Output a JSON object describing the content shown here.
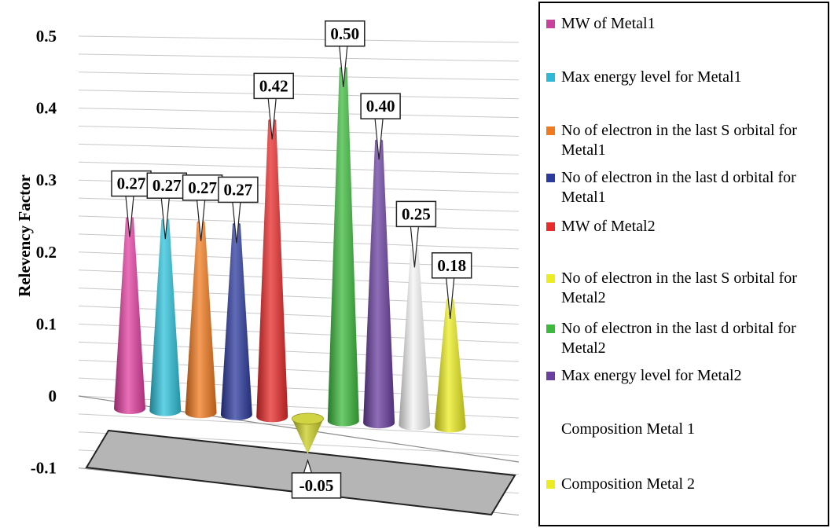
{
  "chart_data": {
    "type": "bar",
    "style": "3d-cone",
    "ylabel": "Relevency Factor",
    "ylim": [
      -0.1,
      0.5
    ],
    "yticks": [
      "0.5",
      "0.4",
      "0.3",
      "0.2",
      "0.1",
      "0",
      "-0.1"
    ],
    "grid": true,
    "legend_position": "right",
    "series": [
      {
        "name": "MW of Metal1",
        "value": 0.27,
        "label": "0.27",
        "color": "#e23fa0"
      },
      {
        "name": "Max energy level for Metal1",
        "value": 0.27,
        "label": "0.27",
        "color": "#2fc3dc"
      },
      {
        "name": "No of electron in the last S orbital for Metal1",
        "value": 0.27,
        "label": "0.27",
        "color": "#f07a1f"
      },
      {
        "name": "No of electron in the last d orbital for Metal1",
        "value": 0.27,
        "label": "0.27",
        "color": "#2c3a9e"
      },
      {
        "name": "MW of Metal2",
        "value": 0.42,
        "label": "0.42",
        "color": "#e82a2a"
      },
      {
        "name": "No of electron in the last S orbital for Metal2",
        "value": -0.05,
        "label": "-0.05",
        "color": "#c8cc22"
      },
      {
        "name": "No of electron in the last d orbital for Metal2",
        "value": 0.5,
        "label": "0.50",
        "color": "#3dba3d"
      },
      {
        "name": "Max energy level for Metal2",
        "value": 0.4,
        "label": "0.40",
        "color": "#6a3fa0"
      },
      {
        "name": "Composition Metal 1",
        "value": 0.25,
        "label": "0.25",
        "color": "#f4f4f4"
      },
      {
        "name": "Composition Metal 2",
        "value": 0.18,
        "label": "0.18",
        "color": "#ecec22"
      }
    ]
  },
  "legend": {
    "items": [
      {
        "label": "MW of Metal1",
        "color": "#c9409e",
        "show_swatch": true
      },
      {
        "label": "Max energy level for Metal1",
        "color": "#2fb8d8",
        "show_swatch": true
      },
      {
        "label": "No of electron in the last S orbital for Metal1",
        "color": "#f07a1f",
        "show_swatch": true
      },
      {
        "label": "No of electron in the last d orbital for Metal1",
        "color": "#2c3a9e",
        "show_swatch": true
      },
      {
        "label": "MW of Metal2",
        "color": "#e82a2a",
        "show_swatch": true
      },
      {
        "label": "No of electron in the last S orbital for Metal2",
        "color": "#ecec22",
        "show_swatch": true
      },
      {
        "label": "No of electron in the last d orbital for Metal2",
        "color": "#3dba3d",
        "show_swatch": true
      },
      {
        "label": "Max energy level for Metal2",
        "color": "#6a3fa0",
        "show_swatch": true
      },
      {
        "label": "Composition Metal 1",
        "color": "#ffffff",
        "show_swatch": false
      },
      {
        "label": "Composition Metal 2",
        "color": "#ecec22",
        "show_swatch": true
      }
    ]
  }
}
